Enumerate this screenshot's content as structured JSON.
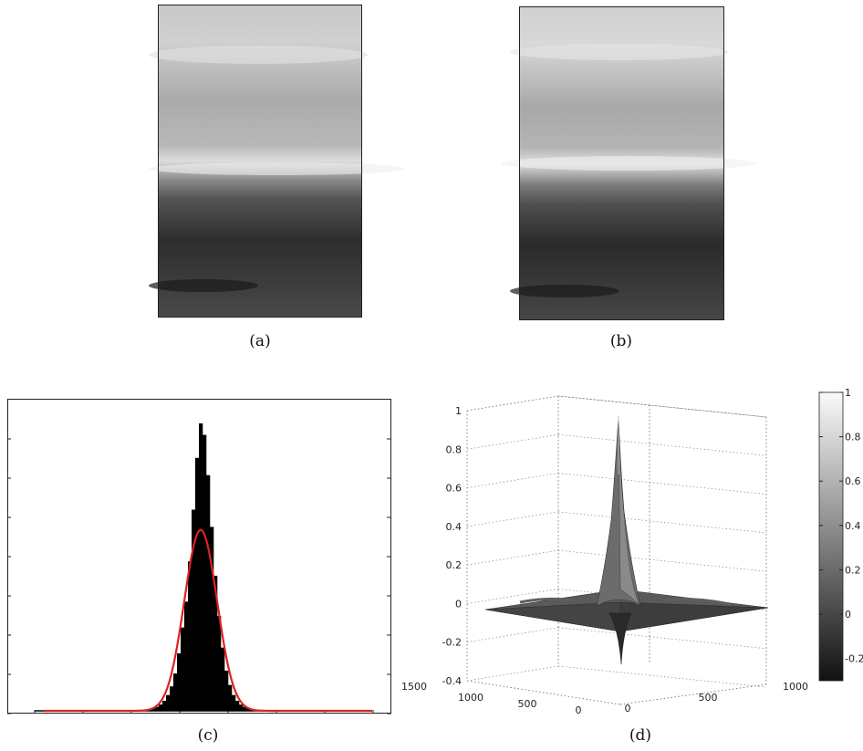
{
  "captions": {
    "a": "(a)",
    "b": "(b)",
    "c": "(c)",
    "d": "(d)"
  },
  "chart_data": [
    {
      "type": "histogram",
      "panel": "c",
      "xlabel": "",
      "ylabel": "",
      "bin_counts": [
        1,
        1,
        2,
        2,
        3,
        4,
        6,
        9,
        14,
        22,
        35,
        55,
        85,
        130,
        200,
        290,
        380,
        520,
        700,
        880,
        1000,
        960,
        820,
        640,
        470,
        330,
        220,
        140,
        90,
        55,
        35,
        22,
        14,
        9,
        6,
        4,
        3,
        2,
        1,
        1
      ],
      "fit_overlay": {
        "shape": "gaussian",
        "color": "#dd2222",
        "peak_fraction": 0.63
      }
    },
    {
      "type": "surface",
      "panel": "d",
      "z_ticks": [
        "1",
        "0.8",
        "0.6",
        "0.4",
        "0.2",
        "0",
        "-0.2",
        "-0.4"
      ],
      "x_ticks": [
        "0",
        "500",
        "1000"
      ],
      "y_ticks": [
        "1500",
        "1000",
        "500",
        "0"
      ],
      "colorbar_ticks": [
        "1",
        "0.8",
        "0.6",
        "0.4",
        "0.2",
        "0",
        "-0.2"
      ],
      "z_range": [
        -0.4,
        1
      ],
      "peak_value": 1,
      "colormap": "gray"
    }
  ]
}
